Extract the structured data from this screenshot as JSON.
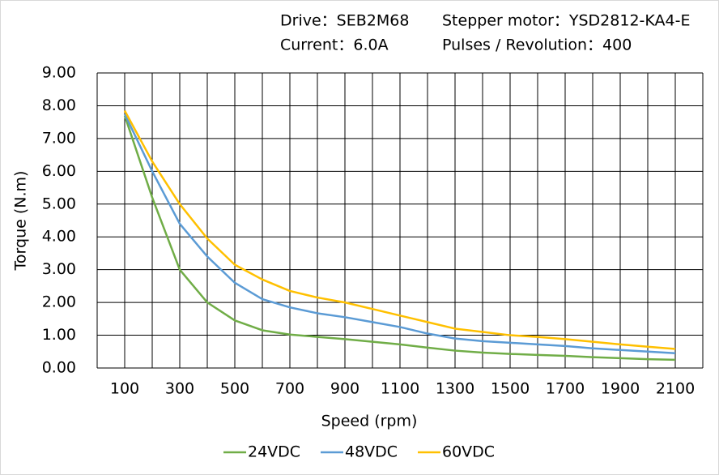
{
  "chart_data": {
    "type": "line",
    "annotations": [
      "Drive：SEB2M68",
      "Stepper  motor：YSD2812-KA4-E",
      "Current：6.0A",
      "Pulses / Revolution：400"
    ],
    "xlabel": "Speed  (rpm)",
    "ylabel": "Torque (N.m)",
    "x": [
      100,
      200,
      300,
      400,
      500,
      600,
      700,
      800,
      900,
      1000,
      1100,
      1200,
      1300,
      1400,
      1500,
      1600,
      1700,
      1800,
      1900,
      2000,
      2100
    ],
    "series": [
      {
        "name": "24VDC",
        "color": "#70ad47",
        "values": [
          7.7,
          5.2,
          3.0,
          2.0,
          1.45,
          1.15,
          1.02,
          0.95,
          0.88,
          0.8,
          0.72,
          0.62,
          0.53,
          0.47,
          0.43,
          0.4,
          0.37,
          0.33,
          0.3,
          0.27,
          0.25
        ]
      },
      {
        "name": "48VDC",
        "color": "#5b9bd5",
        "values": [
          7.75,
          6.0,
          4.4,
          3.4,
          2.6,
          2.1,
          1.85,
          1.67,
          1.55,
          1.4,
          1.25,
          1.05,
          0.9,
          0.82,
          0.77,
          0.72,
          0.67,
          0.6,
          0.55,
          0.5,
          0.45
        ]
      },
      {
        "name": "60VDC",
        "color": "#ffc000",
        "values": [
          7.85,
          6.3,
          5.0,
          3.95,
          3.15,
          2.7,
          2.35,
          2.15,
          2.0,
          1.8,
          1.6,
          1.4,
          1.2,
          1.1,
          1.0,
          0.95,
          0.88,
          0.8,
          0.72,
          0.65,
          0.58
        ]
      }
    ],
    "xlim": [
      0,
      2200
    ],
    "xticks": [
      100,
      300,
      500,
      700,
      900,
      1100,
      1300,
      1500,
      1700,
      1900,
      2100
    ],
    "xgrid": [
      0,
      100,
      200,
      300,
      400,
      500,
      600,
      700,
      800,
      900,
      1000,
      1100,
      1200,
      1300,
      1400,
      1500,
      1600,
      1700,
      1800,
      1900,
      2000,
      2100,
      2200
    ],
    "ylim": [
      0,
      9
    ],
    "yticks": [
      {
        "value": 0,
        "label": "0.00"
      },
      {
        "value": 1,
        "label": "1.00"
      },
      {
        "value": 2,
        "label": "2.00"
      },
      {
        "value": 3,
        "label": "3.00"
      },
      {
        "value": 4,
        "label": "4.00"
      },
      {
        "value": 5,
        "label": "5.00"
      },
      {
        "value": 6,
        "label": "6.00"
      },
      {
        "value": 7,
        "label": "7.00"
      },
      {
        "value": 8,
        "label": "8.00"
      },
      {
        "value": 9,
        "label": "9.00"
      }
    ],
    "grid": true,
    "legend": "bottom"
  }
}
